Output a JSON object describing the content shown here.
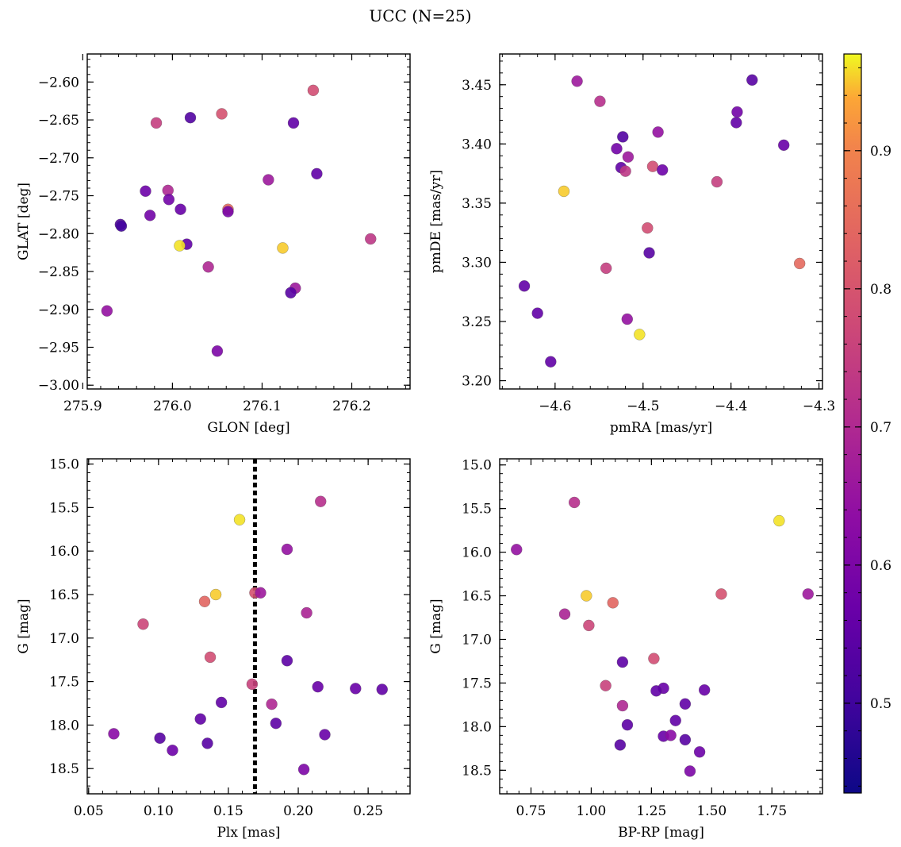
{
  "figure": {
    "title": "UCC (N=25)"
  },
  "colorbar": {
    "ticks": [
      0.5,
      0.6,
      0.7,
      0.8,
      0.9
    ],
    "range": [
      0.435,
      0.97
    ],
    "colormap": "plasma"
  },
  "chart_data": [
    {
      "type": "scatter",
      "xlabel": "GLON [deg]",
      "ylabel": "GLAT [deg]",
      "xlim": [
        275.905,
        276.265
      ],
      "ylim": [
        -3.005,
        -2.563
      ],
      "xticks": [
        "275.9",
        "276.0",
        "276.1",
        "276.2"
      ],
      "xtick_values": [
        275.9,
        276.0,
        276.1,
        276.2
      ],
      "yticks": [
        "−2.60",
        "−2.65",
        "−2.70",
        "−2.75",
        "−2.80",
        "−2.85",
        "−2.90",
        "−2.95",
        "−3.00"
      ],
      "ytick_values": [
        -2.6,
        -2.65,
        -2.7,
        -2.75,
        -2.8,
        -2.85,
        -2.9,
        -2.95,
        -3.0
      ],
      "points": [
        {
          "x": 276.157,
          "y": -2.611,
          "c": 0.76
        },
        {
          "x": 276.055,
          "y": -2.642,
          "c": 0.77
        },
        {
          "x": 276.02,
          "y": -2.647,
          "c": 0.47
        },
        {
          "x": 275.982,
          "y": -2.654,
          "c": 0.72
        },
        {
          "x": 276.135,
          "y": -2.654,
          "c": 0.5
        },
        {
          "x": 276.161,
          "y": -2.721,
          "c": 0.5
        },
        {
          "x": 276.107,
          "y": -2.729,
          "c": 0.62
        },
        {
          "x": 275.97,
          "y": -2.744,
          "c": 0.52
        },
        {
          "x": 275.995,
          "y": -2.743,
          "c": 0.66
        },
        {
          "x": 275.996,
          "y": -2.755,
          "c": 0.53
        },
        {
          "x": 276.009,
          "y": -2.768,
          "c": 0.51
        },
        {
          "x": 276.062,
          "y": -2.768,
          "c": 0.83
        },
        {
          "x": 276.062,
          "y": -2.771,
          "c": 0.54
        },
        {
          "x": 275.975,
          "y": -2.776,
          "c": 0.53
        },
        {
          "x": 275.942,
          "y": -2.788,
          "c": 0.47
        },
        {
          "x": 275.943,
          "y": -2.79,
          "c": 0.44
        },
        {
          "x": 276.016,
          "y": -2.814,
          "c": 0.5
        },
        {
          "x": 276.008,
          "y": -2.816,
          "c": 0.96
        },
        {
          "x": 276.123,
          "y": -2.819,
          "c": 0.95
        },
        {
          "x": 276.221,
          "y": -2.807,
          "c": 0.7
        },
        {
          "x": 276.04,
          "y": -2.844,
          "c": 0.66
        },
        {
          "x": 276.137,
          "y": -2.872,
          "c": 0.62
        },
        {
          "x": 276.132,
          "y": -2.878,
          "c": 0.48
        },
        {
          "x": 275.927,
          "y": -2.902,
          "c": 0.6
        },
        {
          "x": 276.05,
          "y": -2.955,
          "c": 0.55
        }
      ]
    },
    {
      "type": "scatter",
      "xlabel": "pmRA [mas/yr]",
      "ylabel": "pmDE [mas/yr]",
      "xlim": [
        -4.663,
        -4.296
      ],
      "ylim": [
        3.193,
        3.476
      ],
      "xticks": [
        "−4.6",
        "−4.5",
        "−4.4",
        "−4.3"
      ],
      "xtick_values": [
        -4.6,
        -4.5,
        -4.4,
        -4.3
      ],
      "yticks": [
        "3.45",
        "3.40",
        "3.35",
        "3.30",
        "3.25",
        "3.20"
      ],
      "ytick_values": [
        3.45,
        3.4,
        3.35,
        3.3,
        3.25,
        3.2
      ],
      "points": [
        {
          "x": -4.575,
          "y": 3.453,
          "c": 0.62
        },
        {
          "x": -4.549,
          "y": 3.436,
          "c": 0.68
        },
        {
          "x": -4.376,
          "y": 3.454,
          "c": 0.48
        },
        {
          "x": -4.393,
          "y": 3.427,
          "c": 0.53
        },
        {
          "x": -4.394,
          "y": 3.418,
          "c": 0.5
        },
        {
          "x": -4.523,
          "y": 3.406,
          "c": 0.47
        },
        {
          "x": -4.483,
          "y": 3.41,
          "c": 0.6
        },
        {
          "x": -4.53,
          "y": 3.396,
          "c": 0.53
        },
        {
          "x": -4.34,
          "y": 3.399,
          "c": 0.51
        },
        {
          "x": -4.517,
          "y": 3.389,
          "c": 0.62
        },
        {
          "x": -4.525,
          "y": 3.38,
          "c": 0.5
        },
        {
          "x": -4.52,
          "y": 3.377,
          "c": 0.7
        },
        {
          "x": -4.489,
          "y": 3.381,
          "c": 0.76
        },
        {
          "x": -4.478,
          "y": 3.378,
          "c": 0.52
        },
        {
          "x": -4.416,
          "y": 3.368,
          "c": 0.72
        },
        {
          "x": -4.59,
          "y": 3.36,
          "c": 0.95
        },
        {
          "x": -4.495,
          "y": 3.329,
          "c": 0.76
        },
        {
          "x": -4.493,
          "y": 3.308,
          "c": 0.48
        },
        {
          "x": -4.322,
          "y": 3.299,
          "c": 0.83
        },
        {
          "x": -4.542,
          "y": 3.295,
          "c": 0.72
        },
        {
          "x": -4.635,
          "y": 3.28,
          "c": 0.5
        },
        {
          "x": -4.62,
          "y": 3.257,
          "c": 0.5
        },
        {
          "x": -4.518,
          "y": 3.252,
          "c": 0.6
        },
        {
          "x": -4.504,
          "y": 3.239,
          "c": 0.96
        },
        {
          "x": -4.605,
          "y": 3.216,
          "c": 0.5
        }
      ]
    },
    {
      "type": "scatter",
      "xlabel": "Plx [mas]",
      "ylabel": "G [mag]",
      "xlim": [
        0.049,
        0.28
      ],
      "ylim": [
        18.79,
        14.94
      ],
      "xticks": [
        "0.05",
        "0.10",
        "0.15",
        "0.20",
        "0.25"
      ],
      "xtick_values": [
        0.05,
        0.1,
        0.15,
        0.2,
        0.25
      ],
      "yticks": [
        "15.0",
        "15.5",
        "16.0",
        "16.5",
        "17.0",
        "17.5",
        "18.0",
        "18.5"
      ],
      "ytick_values": [
        15.0,
        15.5,
        16.0,
        16.5,
        17.0,
        17.5,
        18.0,
        18.5
      ],
      "vline": 0.169,
      "points": [
        {
          "x": 0.216,
          "y": 15.43,
          "c": 0.68
        },
        {
          "x": 0.158,
          "y": 15.64,
          "c": 0.96
        },
        {
          "x": 0.192,
          "y": 15.98,
          "c": 0.6
        },
        {
          "x": 0.141,
          "y": 16.5,
          "c": 0.95
        },
        {
          "x": 0.169,
          "y": 16.48,
          "c": 0.77
        },
        {
          "x": 0.173,
          "y": 16.48,
          "c": 0.62
        },
        {
          "x": 0.133,
          "y": 16.58,
          "c": 0.82
        },
        {
          "x": 0.206,
          "y": 16.71,
          "c": 0.65
        },
        {
          "x": 0.089,
          "y": 16.84,
          "c": 0.74
        },
        {
          "x": 0.137,
          "y": 17.22,
          "c": 0.76
        },
        {
          "x": 0.192,
          "y": 17.26,
          "c": 0.49
        },
        {
          "x": 0.167,
          "y": 17.53,
          "c": 0.73
        },
        {
          "x": 0.214,
          "y": 17.56,
          "c": 0.51
        },
        {
          "x": 0.241,
          "y": 17.58,
          "c": 0.51
        },
        {
          "x": 0.26,
          "y": 17.59,
          "c": 0.5
        },
        {
          "x": 0.145,
          "y": 17.74,
          "c": 0.5
        },
        {
          "x": 0.181,
          "y": 17.76,
          "c": 0.66
        },
        {
          "x": 0.13,
          "y": 17.93,
          "c": 0.5
        },
        {
          "x": 0.184,
          "y": 17.98,
          "c": 0.49
        },
        {
          "x": 0.068,
          "y": 18.1,
          "c": 0.58
        },
        {
          "x": 0.219,
          "y": 18.11,
          "c": 0.51
        },
        {
          "x": 0.101,
          "y": 18.15,
          "c": 0.48
        },
        {
          "x": 0.135,
          "y": 18.21,
          "c": 0.48
        },
        {
          "x": 0.11,
          "y": 18.29,
          "c": 0.52
        },
        {
          "x": 0.204,
          "y": 18.51,
          "c": 0.55
        }
      ]
    },
    {
      "type": "scatter",
      "xlabel": "BP-RP [mag]",
      "ylabel": "G [mag]",
      "xlim": [
        0.62,
        1.96
      ],
      "ylim": [
        18.77,
        14.93
      ],
      "xticks": [
        "0.75",
        "1.00",
        "1.25",
        "1.50",
        "1.75"
      ],
      "xtick_values": [
        0.75,
        1.0,
        1.25,
        1.5,
        1.75
      ],
      "yticks": [
        "15.0",
        "15.5",
        "16.0",
        "16.5",
        "17.0",
        "17.5",
        "18.0",
        "18.5"
      ],
      "ytick_values": [
        15.0,
        15.5,
        16.0,
        16.5,
        17.0,
        17.5,
        18.0,
        18.5
      ],
      "points": [
        {
          "x": 0.93,
          "y": 15.43,
          "c": 0.68
        },
        {
          "x": 1.78,
          "y": 15.64,
          "c": 0.96
        },
        {
          "x": 0.69,
          "y": 15.97,
          "c": 0.6
        },
        {
          "x": 0.98,
          "y": 16.5,
          "c": 0.95
        },
        {
          "x": 1.54,
          "y": 16.48,
          "c": 0.77
        },
        {
          "x": 1.9,
          "y": 16.48,
          "c": 0.62
        },
        {
          "x": 1.09,
          "y": 16.58,
          "c": 0.82
        },
        {
          "x": 0.89,
          "y": 16.71,
          "c": 0.65
        },
        {
          "x": 0.99,
          "y": 16.84,
          "c": 0.74
        },
        {
          "x": 1.26,
          "y": 17.22,
          "c": 0.76
        },
        {
          "x": 1.13,
          "y": 17.26,
          "c": 0.49
        },
        {
          "x": 1.06,
          "y": 17.53,
          "c": 0.73
        },
        {
          "x": 1.3,
          "y": 17.56,
          "c": 0.51
        },
        {
          "x": 1.47,
          "y": 17.58,
          "c": 0.51
        },
        {
          "x": 1.27,
          "y": 17.59,
          "c": 0.5
        },
        {
          "x": 1.39,
          "y": 17.74,
          "c": 0.5
        },
        {
          "x": 1.13,
          "y": 17.76,
          "c": 0.66
        },
        {
          "x": 1.35,
          "y": 17.93,
          "c": 0.5
        },
        {
          "x": 1.15,
          "y": 17.98,
          "c": 0.49
        },
        {
          "x": 1.3,
          "y": 18.11,
          "c": 0.51
        },
        {
          "x": 1.33,
          "y": 18.1,
          "c": 0.58
        },
        {
          "x": 1.39,
          "y": 18.15,
          "c": 0.48
        },
        {
          "x": 1.12,
          "y": 18.21,
          "c": 0.48
        },
        {
          "x": 1.45,
          "y": 18.29,
          "c": 0.52
        },
        {
          "x": 1.41,
          "y": 18.51,
          "c": 0.55
        }
      ]
    }
  ]
}
